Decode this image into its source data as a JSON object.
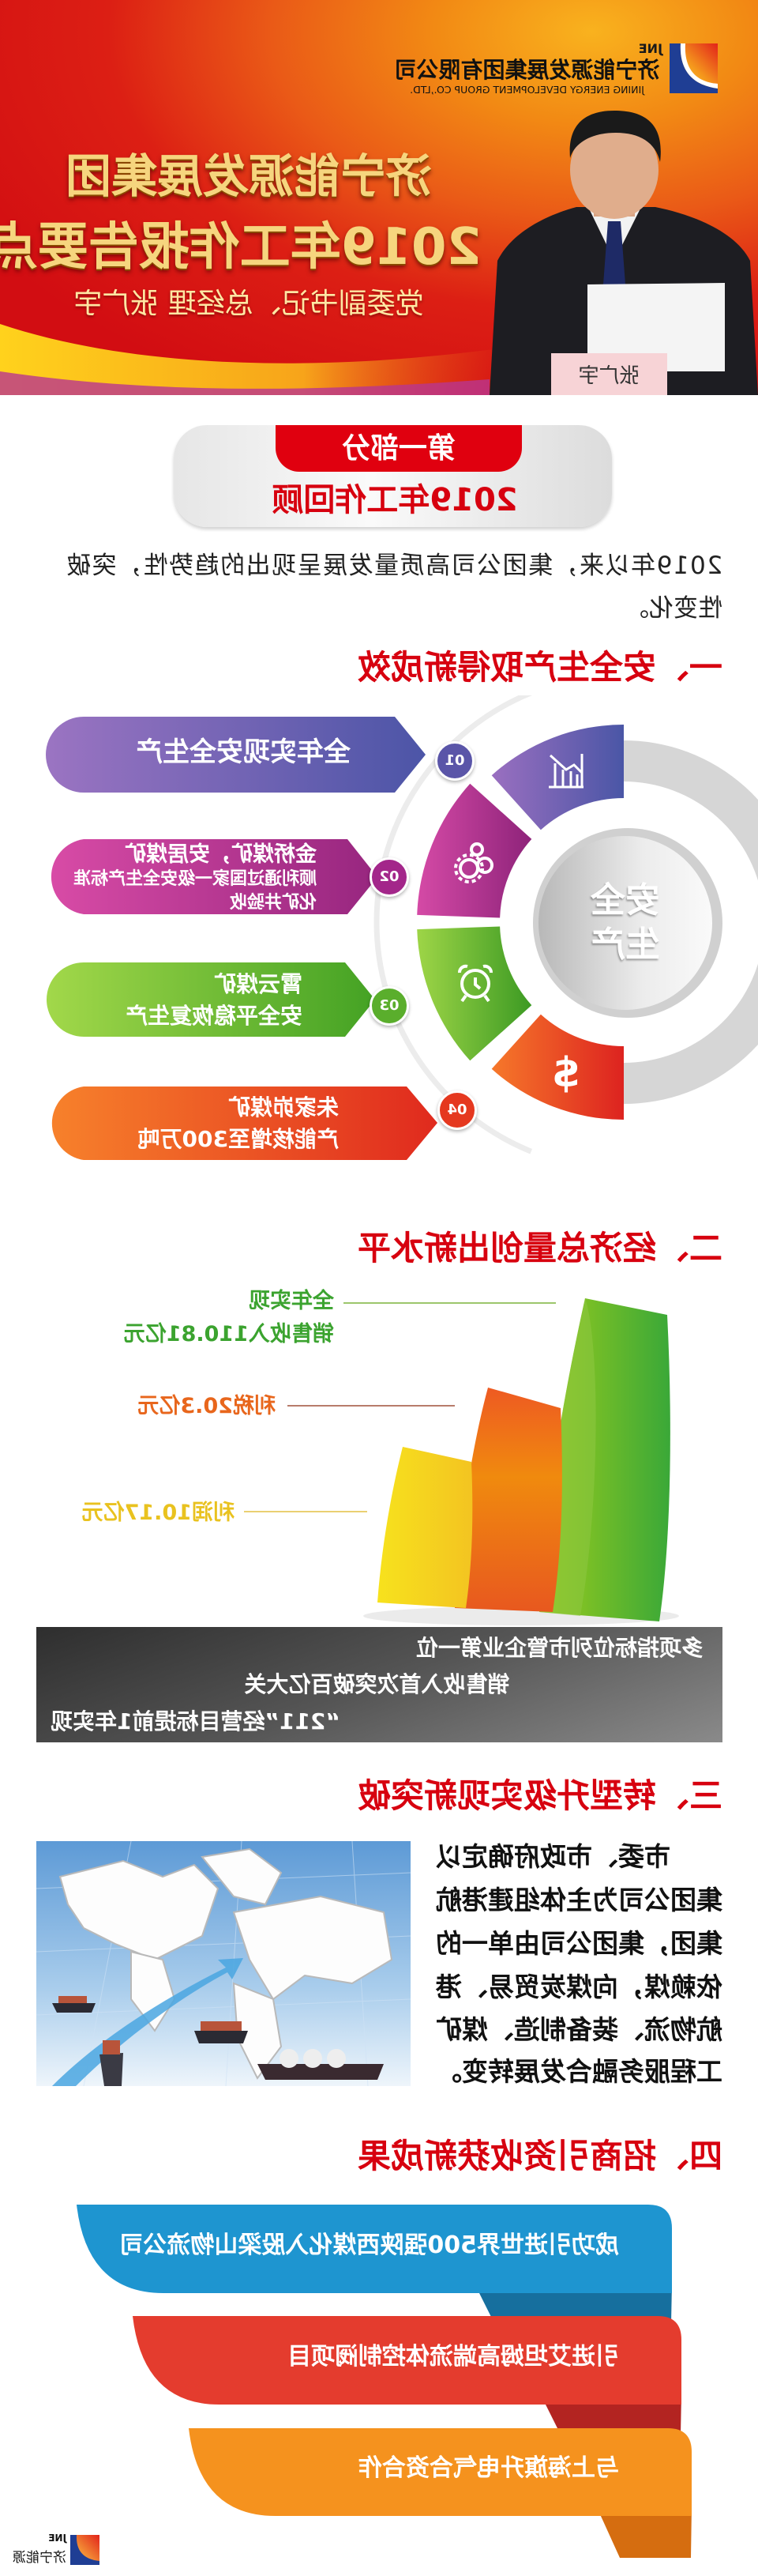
{
  "header": {
    "logo": {
      "abbr": "JNE",
      "name_cn": "济宁能源发展集团有限公司",
      "name_en": "JINING ENERGY DEVELOPMENT GROUP CO.,LTD."
    },
    "title_line1": "济宁能源发展集团",
    "title_line2": "2019年工作报告要点",
    "subtitle": "党委副书记、总经理 张广宇",
    "nameplate": "张广宇"
  },
  "part": {
    "label": "第一部分",
    "title": "2019年工作回顾"
  },
  "intro": {
    "line1": "2019年以来，集团公司高质量发展呈现出的趋势性，突破",
    "line2": "性变化。"
  },
  "section1": {
    "heading": "一、安全生产取得新成效",
    "center_label": [
      "安",
      "全",
      "生",
      "产"
    ],
    "items": [
      {
        "num": "01",
        "lines": [
          "全年实现安全生产"
        ],
        "color": "#6a5cb2",
        "icon": "bar-chart-icon"
      },
      {
        "num": "02",
        "lines": [
          "金桥煤矿，安居煤矿",
          "顺利通过国家一级安全生产标准",
          "化矿井验收"
        ],
        "color": "#b3308f",
        "icon": "gears-icon"
      },
      {
        "num": "03",
        "lines": [
          "霄云煤矿",
          "安全平稳恢复生产"
        ],
        "color": "#5cb130",
        "icon": "alarm-clock-icon"
      },
      {
        "num": "04",
        "lines": [
          "朱家峁煤矿",
          "产能核增至300万吨"
        ],
        "color": "#e8441f",
        "icon": "dollar-icon"
      }
    ]
  },
  "section2": {
    "heading": "二、经济总量创出新水平",
    "items": [
      {
        "lines": [
          "全年实现",
          "销售收入110.81亿元"
        ],
        "value": 110.81,
        "color": "#3ba32f"
      },
      {
        "lines": [
          "利税20.3亿元"
        ],
        "value": 20.3,
        "color": "#e8661c"
      },
      {
        "lines": [
          "利润10.17亿元"
        ],
        "value": 10.17,
        "color": "#e9c21f"
      }
    ],
    "highlights": [
      "多项指标位列市管企业第一位",
      "销售收入首次突破百亿大关",
      "“211”经营目标提前1年实现"
    ]
  },
  "section3": {
    "heading": "三、转型升级实现新突破",
    "lines": [
      "市委、市政府确定以",
      "集团公司为主体组建港航",
      "集团，集团公司由单一的",
      "依赖煤，向煤炭贸易、港",
      "航物流、装备制造、煤矿",
      "工程服务融合发展转变。"
    ]
  },
  "section4": {
    "heading": "四、招商引资收获新成果",
    "items": [
      {
        "text": "成功引进世界500强陕西煤化入股梁山物流公司",
        "color": "#1e95d0"
      },
      {
        "text": "引进艾坦姆高端流体控制阀项目",
        "color": "#e43c2e"
      },
      {
        "text": "与上海旗升电气合资合作",
        "color": "#f5921e"
      }
    ]
  },
  "footer": {
    "abbr": "JNE",
    "name": "济宁能源"
  }
}
